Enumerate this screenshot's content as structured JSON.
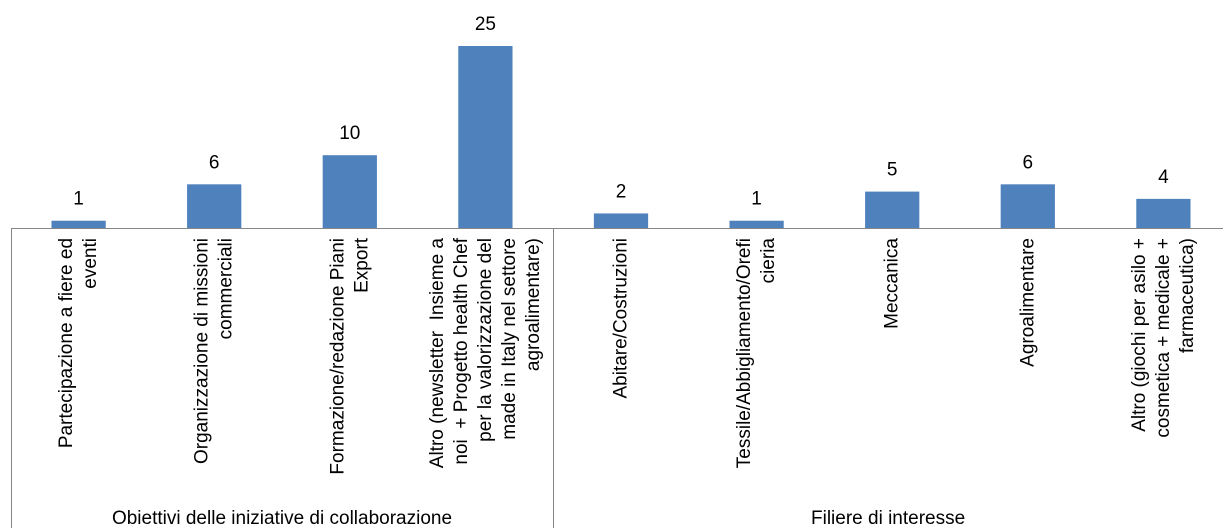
{
  "chart_data": {
    "type": "bar",
    "categories": [
      [
        "Partecipazione a fiere ed",
        "eventi"
      ],
      [
        "Organizzazione di missioni",
        "commerciali"
      ],
      [
        "Formazione/redazione Piani",
        "Export"
      ],
      [
        "Altro (newsletter  Insieme a",
        "noi  + Progetto health Chef",
        "per la valorizzazione del",
        "made in Italy nel settore",
        "agroalimentare)"
      ],
      [
        "Abitare/Costruzioni"
      ],
      [
        "Tessile/Abbigliamento/Orefi",
        "cieria"
      ],
      [
        "Meccanica"
      ],
      [
        "Agroalimentare"
      ],
      [
        "Altro (giochi per asilo +",
        "cosmetica + medicale +",
        "farmaceutica)"
      ]
    ],
    "values": [
      1,
      6,
      10,
      25,
      2,
      1,
      5,
      6,
      4
    ],
    "groups": [
      {
        "label": "Obiettivi delle iniziative di collaborazione",
        "category_indices": [
          0,
          1,
          2,
          3
        ]
      },
      {
        "label": "Filiere di interesse",
        "category_indices": [
          4,
          5,
          6,
          7,
          8
        ]
      }
    ],
    "data_labels": true,
    "ylim": [
      0,
      30
    ],
    "value_axis_visible": false,
    "grid": false,
    "legend": "none",
    "colors": {
      "bar": "#4F81BD",
      "axis_line": "#868686",
      "text": "#000000"
    }
  }
}
